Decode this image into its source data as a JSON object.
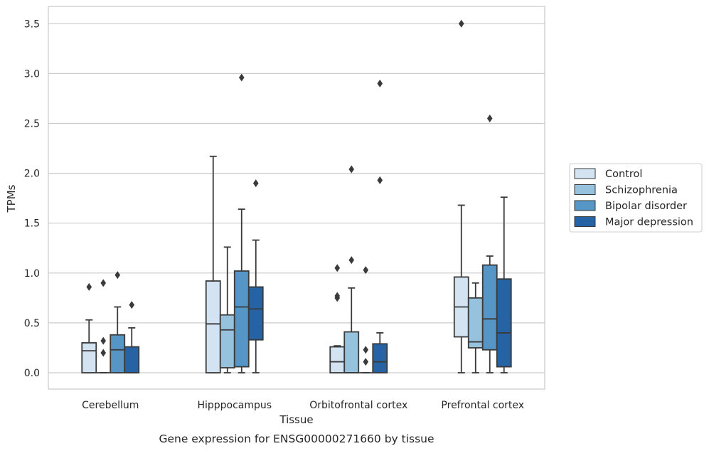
{
  "chart_data": {
    "type": "box",
    "title": "",
    "caption": "Gene expression for ENSG00000271660 by tissue",
    "xlabel": "Tissue",
    "ylabel": "TPMs",
    "ylim": [
      -0.17,
      3.68
    ],
    "yticks": [
      "0.0",
      "0.5",
      "1.0",
      "1.5",
      "2.0",
      "2.5",
      "3.0",
      "3.5"
    ],
    "grid": true,
    "legend_position": "right",
    "categories": [
      "Cerebellum",
      "Hipppocampus",
      "Orbitofrontal cortex",
      "Prefrontal cortex"
    ],
    "series": [
      {
        "name": "Control",
        "color": "#d3e3f1",
        "boxes": [
          {
            "min": 0,
            "q1": 0,
            "median": 0.22,
            "q3": 0.3,
            "max": 0.53,
            "outliers": [
              0.86
            ]
          },
          {
            "min": 0,
            "q1": 0,
            "median": 0.49,
            "q3": 0.92,
            "max": 2.17,
            "outliers": []
          },
          {
            "min": 0,
            "q1": 0,
            "median": 0.11,
            "q3": 0.26,
            "max": 0.27,
            "outliers": [
              1.05,
              0.77,
              0.75
            ]
          },
          {
            "min": 0,
            "q1": 0.36,
            "median": 0.66,
            "q3": 0.96,
            "max": 1.68,
            "outliers": [
              3.5
            ]
          }
        ]
      },
      {
        "name": "Schizophrenia",
        "color": "#97c2dd",
        "boxes": [
          {
            "min": 0,
            "q1": 0,
            "median": 0,
            "q3": 0,
            "max": 0,
            "outliers": [
              0.9,
              0.32,
              0.2
            ]
          },
          {
            "min": 0,
            "q1": 0.05,
            "median": 0.43,
            "q3": 0.58,
            "max": 1.26,
            "outliers": []
          },
          {
            "min": 0,
            "q1": 0,
            "median": 0,
            "q3": 0.41,
            "max": 0.85,
            "outliers": [
              2.04,
              1.13
            ]
          },
          {
            "min": 0,
            "q1": 0.25,
            "median": 0.31,
            "q3": 0.75,
            "max": 0.9,
            "outliers": []
          }
        ]
      },
      {
        "name": "Bipolar disorder",
        "color": "#5596c6",
        "boxes": [
          {
            "min": 0,
            "q1": 0,
            "median": 0.23,
            "q3": 0.38,
            "max": 0.66,
            "outliers": [
              0.98
            ]
          },
          {
            "min": 0,
            "q1": 0.06,
            "median": 0.66,
            "q3": 1.02,
            "max": 1.64,
            "outliers": [
              2.96
            ]
          },
          {
            "min": 0,
            "q1": 0,
            "median": 0,
            "q3": 0,
            "max": 0,
            "outliers": [
              1.03,
              0.23,
              0.11
            ]
          },
          {
            "min": 0,
            "q1": 0.23,
            "median": 0.54,
            "q3": 1.08,
            "max": 1.17,
            "outliers": [
              2.55
            ]
          }
        ]
      },
      {
        "name": "Major depression",
        "color": "#2563a4",
        "boxes": [
          {
            "min": 0,
            "q1": 0,
            "median": 0,
            "q3": 0.26,
            "max": 0.45,
            "outliers": [
              0.68
            ]
          },
          {
            "min": 0,
            "q1": 0.33,
            "median": 0.64,
            "q3": 0.86,
            "max": 1.33,
            "outliers": [
              1.9
            ]
          },
          {
            "min": 0,
            "q1": 0,
            "median": 0.11,
            "q3": 0.29,
            "max": 0.4,
            "outliers": [
              2.9,
              1.93
            ]
          },
          {
            "min": 0,
            "q1": 0.06,
            "median": 0.4,
            "q3": 0.94,
            "max": 1.76,
            "outliers": []
          }
        ]
      }
    ]
  }
}
